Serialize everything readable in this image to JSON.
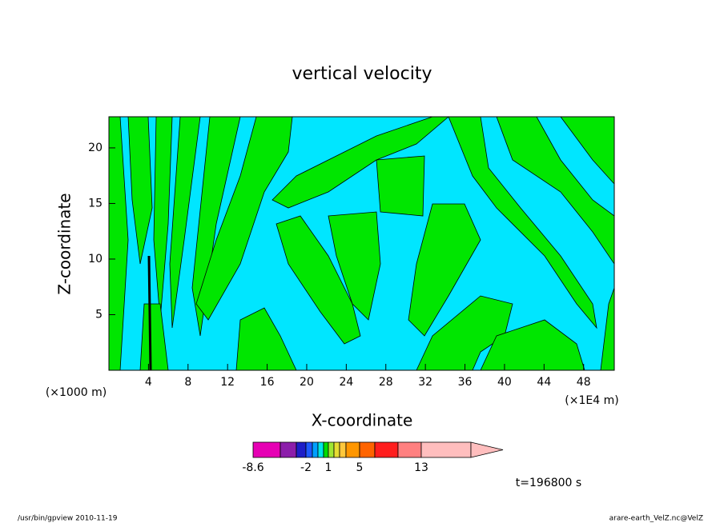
{
  "chart_data": {
    "type": "contour",
    "title": "vertical velocity",
    "x_label": "X-coordinate",
    "y_label": "Z-coordinate",
    "x_unit_left": "(×1000 m)",
    "x_unit_right": "(×1E4 m)",
    "xlim": [
      0,
      51.1
    ],
    "xticks": [
      4,
      8,
      12,
      16,
      20,
      24,
      28,
      32,
      36,
      40,
      44,
      48
    ],
    "ylim": [
      0,
      22.8
    ],
    "yticks": [
      5,
      10,
      15,
      20
    ],
    "colorbar": {
      "levels": [
        -8.6,
        null,
        null,
        -2,
        null,
        null,
        null,
        1,
        null,
        null,
        null,
        5,
        null,
        null,
        13,
        null
      ],
      "colors": [
        "#e600b4",
        "#8c1eaa",
        "#1e1ec8",
        "#1e5aff",
        "#00a0ff",
        "#00e6e6",
        "#00dc00",
        "#a0e632",
        "#e6dc32",
        "#ffc83c",
        "#ff9600",
        "#ff6400",
        "#ff1e1e",
        "#ff8080",
        "#ffbebe"
      ]
    },
    "time_label": "t=196800 s",
    "footer_left": "/usr/bin/gpview   2010-11-19",
    "footer_right": "arare-earth_VelZ.nc@VelZ"
  }
}
